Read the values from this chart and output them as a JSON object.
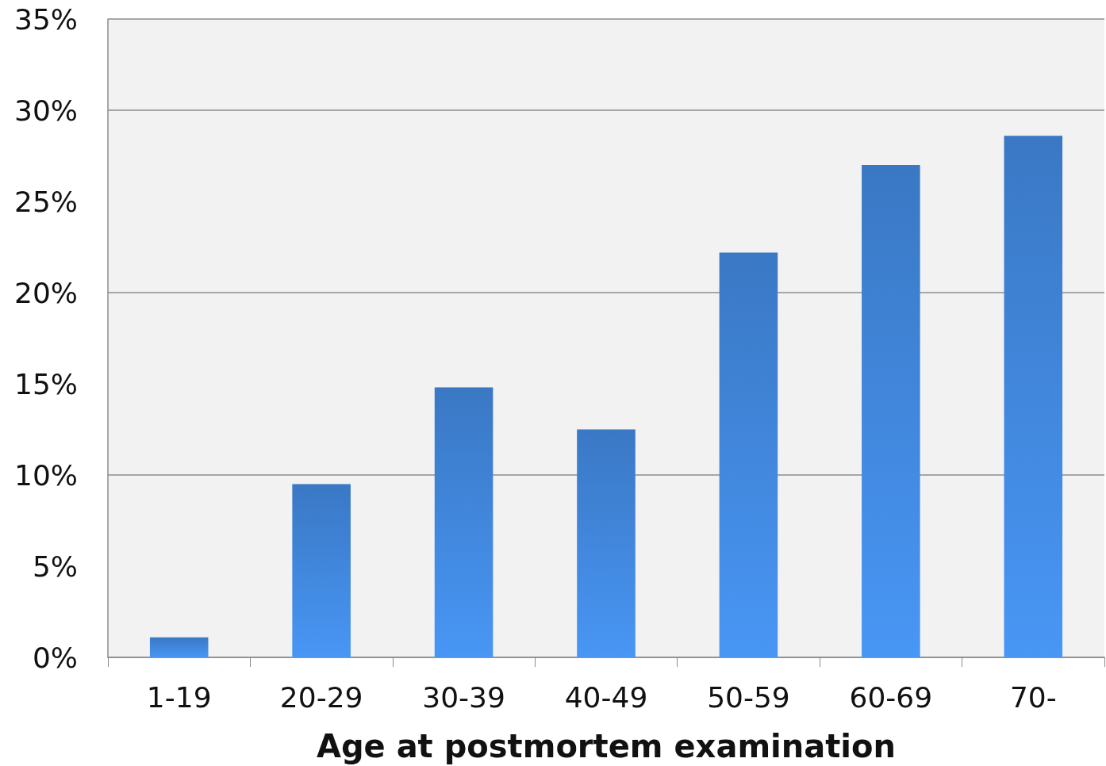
{
  "chart_data": {
    "type": "bar",
    "xlabel": "Age at postmortem examination",
    "categories": [
      "1-19",
      "20-29",
      "30-39",
      "40-49",
      "50-59",
      "60-69",
      "70-"
    ],
    "values": [
      1.1,
      9.5,
      14.8,
      12.5,
      22.2,
      27.0,
      28.6
    ],
    "color": "#3a78c4",
    "ylim": [
      0,
      35
    ],
    "yticks": [
      {
        "value": 0,
        "label": "0%"
      },
      {
        "value": 5,
        "label": "5%"
      },
      {
        "value": 10,
        "label": "10%"
      },
      {
        "value": 15,
        "label": "15%"
      },
      {
        "value": 20,
        "label": "20%"
      },
      {
        "value": 25,
        "label": "25%"
      },
      {
        "value": 30,
        "label": "30%"
      },
      {
        "value": 35,
        "label": "35%"
      }
    ],
    "grid": "y"
  }
}
